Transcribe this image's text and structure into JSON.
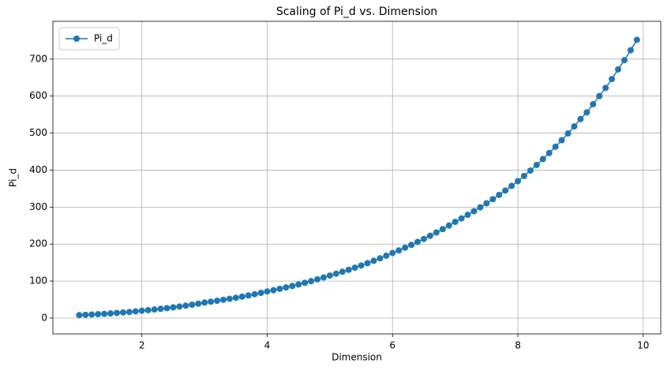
{
  "chart_data": {
    "type": "line",
    "title": "Scaling of Pi_d vs. Dimension",
    "x_label": "Dimension",
    "y_label": "Pi_d",
    "x": [
      1.0,
      1.1,
      1.2,
      1.3,
      1.4,
      1.5,
      1.6,
      1.7,
      1.8,
      1.9,
      2.0,
      2.1,
      2.2,
      2.3,
      2.4,
      2.5,
      2.6,
      2.7,
      2.8,
      2.9,
      3.0,
      3.1,
      3.2,
      3.3,
      3.4,
      3.5,
      3.6,
      3.7,
      3.8,
      3.9,
      4.0,
      4.1,
      4.2,
      4.3,
      4.4,
      4.5,
      4.6,
      4.7,
      4.8,
      4.9,
      5.0,
      5.1,
      5.2,
      5.3,
      5.4,
      5.5,
      5.6,
      5.7,
      5.8,
      5.9,
      6.0,
      6.1,
      6.2,
      6.3,
      6.4,
      6.5,
      6.6,
      6.7,
      6.8,
      6.9,
      7.0,
      7.1,
      7.2,
      7.3,
      7.4,
      7.5,
      7.6,
      7.7,
      7.8,
      7.9,
      8.0,
      8.1,
      8.2,
      8.3,
      8.4,
      8.5,
      8.6,
      8.7,
      8.8,
      8.9,
      9.0,
      9.1,
      9.2,
      9.3,
      9.4,
      9.5,
      9.6,
      9.7,
      9.8,
      9.9
    ],
    "series": [
      {
        "name": "Pi_d",
        "color": "#1f77b4",
        "values": [
          8,
          8.8,
          9.6,
          10.5,
          11.5,
          12.6,
          13.9,
          15.2,
          16.6,
          18.2,
          20,
          21.5,
          23.2,
          25.0,
          26.9,
          29.0,
          31.2,
          33.6,
          36.2,
          39.0,
          42,
          44.3,
          46.8,
          49.4,
          52.1,
          55.0,
          58.0,
          61.2,
          64.6,
          68.2,
          72,
          75.4,
          79.1,
          82.9,
          86.8,
          91.0,
          95.4,
          99.9,
          104.7,
          109.7,
          115,
          120.0,
          125.2,
          130.6,
          136.3,
          142.2,
          148.4,
          154.8,
          161.6,
          168.6,
          176,
          183.0,
          190.3,
          197.9,
          205.8,
          213.9,
          222.5,
          231.3,
          240.5,
          250.1,
          260,
          269.3,
          279.0,
          289.0,
          299.4,
          310.2,
          321.3,
          332.8,
          344.8,
          357.2,
          370,
          384.1,
          398.7,
          413.9,
          429.7,
          446.1,
          463.1,
          480.7,
          499.0,
          518.0,
          538,
          556,
          578,
          600,
          622,
          646,
          672,
          697,
          724,
          752
        ]
      }
    ],
    "xlim": [
      0.58,
      10.28
    ],
    "ylim": [
      -42.7,
      802
    ],
    "xticks": [
      2,
      4,
      6,
      8,
      10
    ],
    "yticks": [
      0,
      100,
      200,
      300,
      400,
      500,
      600,
      700
    ],
    "grid": true,
    "legend": "upper left"
  }
}
